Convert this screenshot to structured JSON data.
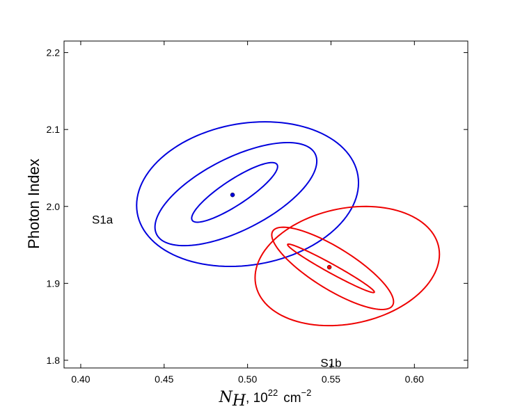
{
  "chart_data": {
    "type": "contour",
    "xlabel": {
      "symbol": "N",
      "subscript": "H",
      "rest": ", 10",
      "sup1": "22",
      "unit": "cm",
      "sup2": "−2"
    },
    "ylabel": "Photon Index",
    "xlim": [
      0.39,
      0.632
    ],
    "ylim": [
      1.79,
      2.215
    ],
    "xticks": [
      0.4,
      0.45,
      0.5,
      0.55,
      0.6
    ],
    "xtick_labels": [
      "0.40",
      "0.45",
      "0.50",
      "0.55",
      "0.60"
    ],
    "yticks": [
      1.8,
      1.9,
      2.0,
      2.1,
      2.2
    ],
    "ytick_labels": [
      "1.8",
      "1.9",
      "2.0",
      "2.1",
      "2.2"
    ],
    "grid": false,
    "series": [
      {
        "name": "S1a",
        "color": "#0000dd",
        "best_fit": [
          0.491,
          2.015
        ],
        "contours": [
          {
            "x_range": [
              0.4665,
              0.518
            ],
            "y_range": [
              1.9795,
              2.057
            ]
          },
          {
            "x_range": [
              0.4445,
              0.5415
            ],
            "y_range": [
              1.949,
              2.083
            ]
          },
          {
            "x_range": [
              0.4335,
              0.5665
            ],
            "y_range": [
              1.922,
              2.11
            ]
          }
        ],
        "label": "S1a",
        "label_pos": [
          0.413,
          1.983
        ]
      },
      {
        "name": "S1b",
        "color": "#ee0000",
        "best_fit": [
          0.549,
          1.921
        ],
        "contours": [
          {
            "x_range": [
              0.524,
              0.576
            ],
            "y_range": [
              1.888,
              1.951
            ]
          },
          {
            "x_range": [
              0.5145,
              0.5875
            ],
            "y_range": [
              1.866,
              1.973
            ]
          },
          {
            "x_range": [
              0.5045,
              0.615
            ],
            "y_range": [
              1.845,
              2.0
            ]
          }
        ],
        "label": "S1b",
        "label_pos": [
          0.55,
          1.797
        ]
      }
    ]
  }
}
